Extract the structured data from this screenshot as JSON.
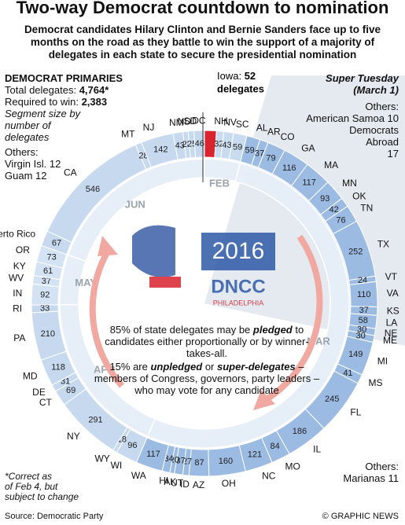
{
  "title": "Two-way Democrat countdown to nomination",
  "subtitle": "Democrat candidates Hilary Clinton and Bernie Sanders face up to five months on the road as they battle to win the support of a majority of delegates in each state to secure the presidential nomination",
  "primaries": {
    "heading": "DEMOCRAT PRIMARIES",
    "total_label": "Total delegates:",
    "total": "4,764*",
    "required_label": "Required to win:",
    "required": "2,383",
    "note": "Segment size by number of delegates",
    "others": [
      "Others:",
      "Virgin Isl. 12",
      "Guam 12"
    ]
  },
  "iowa": {
    "label": "Iowa:",
    "unit": "delegates"
  },
  "super_tuesday": {
    "title": "Super Tuesday",
    "date": "(March 1)",
    "others": [
      "Others:",
      "American Samoa 10",
      "Democrats",
      "Abroad",
      "17"
    ]
  },
  "others_bottom": [
    "Others:",
    "Marianas 11"
  ],
  "footnote": [
    "*Correct as",
    "of Feb 4, but",
    "subject to change"
  ],
  "logo": {
    "year": "2016",
    "name": "DNCC",
    "city": "PHILADELPHIA"
  },
  "note": [
    [
      {
        "text": "85% of state delegates may be "
      },
      {
        "text": "pledged",
        "em": true
      },
      {
        "text": " to candidates either proportionally or by winner-takes-all."
      }
    ],
    [
      {
        "text": "15% are "
      },
      {
        "text": "unpledged",
        "em": true
      },
      {
        "text": " or "
      },
      {
        "text": "super-delegates",
        "em": true
      },
      {
        "text": " – members of Congress, governors, party leaders – who may vote for any candidate"
      }
    ]
  ],
  "source": "Source: Democratic Party",
  "credit": "© GRAPHIC NEWS",
  "chart_data": {
    "type": "ring",
    "months": [
      {
        "label": "FEB",
        "color": "#c9dbef",
        "states": [
          {
            "name": null,
            "value": 52,
            "color": "#d9232e"
          },
          {
            "name": "NH",
            "value": 32
          },
          {
            "name": "NV",
            "value": 43
          },
          {
            "name": "SC",
            "value": 59
          }
        ]
      },
      {
        "label": "MAR",
        "color": "#9bbbe3",
        "states": [
          {
            "name": "AL",
            "value": 59
          },
          {
            "name": "AR",
            "value": 37
          },
          {
            "name": "CO",
            "value": 79
          },
          {
            "name": "GA",
            "value": 116
          },
          {
            "name": "MA",
            "value": 117
          },
          {
            "name": "MN",
            "value": 93
          },
          {
            "name": "OK",
            "value": 42
          },
          {
            "name": "TN",
            "value": 76
          },
          {
            "name": "TX",
            "value": 252
          },
          {
            "name": "VT",
            "value": 24
          },
          {
            "name": "VA",
            "value": 110
          },
          {
            "name": "KS",
            "value": 37
          },
          {
            "name": "LA",
            "value": 58
          },
          {
            "name": "NE",
            "value": 30
          },
          {
            "name": "ME",
            "value": 30
          },
          {
            "name": "MI",
            "value": 149
          },
          {
            "name": "MS",
            "value": 41
          },
          {
            "name": "FL",
            "value": 245
          },
          {
            "name": "IL",
            "value": 186
          },
          {
            "name": "MO",
            "value": 84
          },
          {
            "name": "NC",
            "value": 121
          },
          {
            "name": "OH",
            "value": 160
          },
          {
            "name": "AZ",
            "value": 87
          },
          {
            "name": "ID",
            "value": 27
          },
          {
            "name": "UT",
            "value": 37
          },
          {
            "name": "AK",
            "value": 20
          },
          {
            "name": "HI",
            "value": 34
          },
          {
            "name": "WA",
            "value": 117
          }
        ]
      },
      {
        "label": "APR",
        "color": "#c6d9ef",
        "states": [
          {
            "name": "WI",
            "value": 96
          },
          {
            "name": "WY",
            "value": 18
          },
          {
            "name": "NY",
            "value": 291
          },
          {
            "name": "CT",
            "value": 69
          },
          {
            "name": "DE",
            "value": 31
          },
          {
            "name": "MD",
            "value": 118
          },
          {
            "name": "PA",
            "value": 210
          },
          {
            "name": "RI",
            "value": 33
          }
        ]
      },
      {
        "label": "MAY",
        "color": "#d3e3f4",
        "states": [
          {
            "name": "IN",
            "value": 92
          },
          {
            "name": "WV",
            "value": 37
          },
          {
            "name": "KY",
            "value": 61
          },
          {
            "name": "OR",
            "value": 73
          }
        ]
      },
      {
        "label": "JUN",
        "color": "#c6d9ef",
        "states": [
          {
            "name": "Puerto Rico",
            "value": 67
          },
          {
            "name": "CA",
            "value": 546
          },
          {
            "name": "MT",
            "value": 28
          },
          {
            "name": "NJ",
            "value": 142
          },
          {
            "name": "NM",
            "value": 43
          },
          {
            "name": "ND",
            "value": 23
          },
          {
            "name": "SD",
            "value": 25
          },
          {
            "name": "DC",
            "value": 46
          }
        ]
      }
    ]
  }
}
